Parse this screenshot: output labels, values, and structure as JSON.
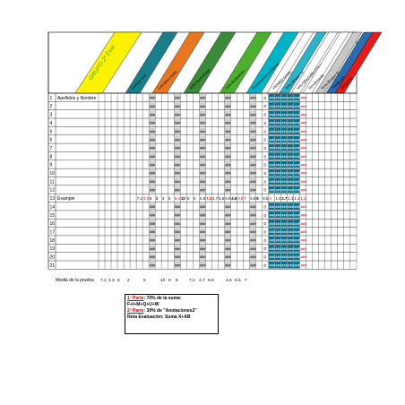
{
  "header": {
    "group_label": "GRUPO 2º Eval",
    "names_label": "Apellidos y Nombre",
    "columns": [
      {
        "label": "Lectura ciclo",
        "color": "#1a7f8a"
      },
      {
        "label": "Literatura hasta",
        "color": "#e87722"
      },
      {
        "label": "Nota Aprendizaje",
        "color": "#3a8a3a"
      },
      {
        "label": "Nota Evaluación",
        "color": "#4caf2e"
      },
      {
        "label": "Presentación Actividad",
        "color": "#00b4c8"
      },
      {
        "label": "PRIMER NIVEL",
        "color": "#ffffff"
      },
      {
        "label": "Nota Bloque IV",
        "color": "#2bb5c9"
      },
      {
        "label": "VALORACIÓN COMPLETA",
        "color": "#ffffff"
      },
      {
        "label": "Rendimiento",
        "color": "#ffffff"
      },
      {
        "label": "Nota Bloque III",
        "color": "#c8c8c8"
      },
      {
        "label": "TRABAJO",
        "color": "#2b6cb0"
      },
      {
        "label": "BOLETÍN",
        "color": "#e41b1b"
      }
    ]
  },
  "rows": {
    "count": 21,
    "example_row": 13,
    "example_label": "Example",
    "hash": "###",
    "zero": "0"
  },
  "example_values": [
    "7.2",
    "4.3",
    "6",
    "2",
    "3",
    "5",
    "6.4",
    "10",
    "8",
    "6",
    "6.8",
    "7.2",
    "4.7",
    "6.5",
    "6.9",
    "4.5",
    "6.5",
    "7",
    "6.8",
    "8",
    "6.5",
    "4",
    "1.0",
    "2.7",
    "1.3",
    "1.1",
    "1.3"
  ],
  "footer": {
    "label": "Media de la prueba",
    "values": [
      "7.2",
      "4.3",
      "6",
      "2",
      "5",
      "10",
      "8",
      "6",
      "7.2",
      "4.7",
      "6.5",
      "4.5",
      "6.5",
      "7"
    ]
  },
  "note": {
    "line1_red": "1ª Parte",
    "line1": ": 70% de la suma:",
    "line2": "F+I+M+Q+U+W",
    "line3_red": "2ª Parte",
    "line3": ": 30% de \"Anotaciones2\"",
    "line4": "Nota Evaluación: Suma X+AB"
  },
  "colors": {
    "hash_fill": "#0b6f8c",
    "hash_text": "#ffffff",
    "red_text": "#d40000",
    "group_band": "#fff200",
    "grid": "#000000"
  }
}
